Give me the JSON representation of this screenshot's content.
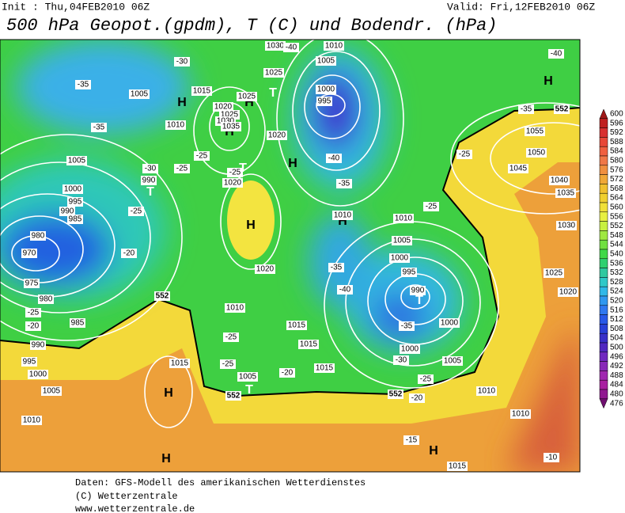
{
  "header": {
    "init": "Init : Thu,04FEB2010 06Z",
    "valid": "Valid: Fri,12FEB2010 06Z",
    "title": "500 hPa Geopot.(gpdm), T (C) und Bodendr. (hPa)"
  },
  "map_labels": [
    "H",
    "H",
    "H",
    "H",
    "H",
    "H",
    "H",
    "H",
    "H",
    "H",
    "T",
    "T",
    "T",
    "T",
    "T",
    "T",
    "1030",
    "1010",
    "1005",
    "1025",
    "1015",
    "1025",
    "1020",
    "1025",
    "1030",
    "1035",
    "1010",
    "1020",
    "1005",
    "1005",
    "1000",
    "995",
    "990",
    "985",
    "990",
    "1020",
    "980",
    "970",
    "975",
    "980",
    "985",
    "990",
    "995",
    "1000",
    "1005",
    "1010",
    "1000",
    "995",
    "1010",
    "1010",
    "1005",
    "1000",
    "995",
    "990",
    "1000",
    "1000",
    "1005",
    "1015",
    "1015",
    "1010",
    "1015",
    "1005",
    "1020",
    "1015",
    "1010",
    "1010",
    "1015",
    "1055",
    "1050",
    "1045",
    "1040",
    "1035",
    "1030",
    "1025",
    "1020",
    "-40",
    "-40",
    "-30",
    "-35",
    "-35",
    "-30",
    "-25",
    "-25",
    "-25",
    "-25",
    "-20",
    "-25",
    "-20",
    "-35",
    "-35",
    "-40",
    "-35",
    "-30",
    "-25",
    "-20",
    "-15",
    "-10",
    "-40",
    "-35",
    "-25",
    "-25",
    "-25",
    "-25",
    "-20",
    "552",
    "552",
    "552",
    "552"
  ],
  "colorbar": {
    "labels": [
      600,
      596,
      592,
      588,
      584,
      580,
      576,
      572,
      568,
      564,
      560,
      556,
      552,
      548,
      544,
      540,
      536,
      532,
      528,
      524,
      520,
      516,
      512,
      508,
      504,
      500,
      496,
      492,
      488,
      484,
      480,
      476
    ]
  },
  "footer": [
    "Daten: GFS-Modell des amerikanischen Wetterdienstes",
    "(C) Wetterzentrale",
    "www.wetterzentrale.de"
  ]
}
